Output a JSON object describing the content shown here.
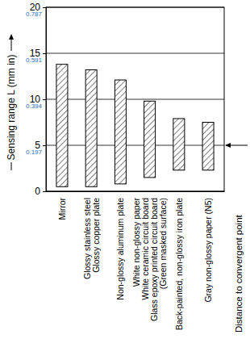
{
  "chart_data": {
    "type": "floating_bar",
    "y_label": "Sensing range L (mm in)",
    "categories": [
      "Mirror",
      "Glossy stainless steel\nGlossy copper plate",
      "Non-glossy aluminum plate",
      "White non-glossy paper\nWhite ceramic circuit board\nGlass epoxy printed circuit board\n(Green masked surface)",
      "Back-painted, non-glossy iron plate",
      "Gray non-glossy paper (N5)"
    ],
    "values": [
      [
        0.5,
        13.8
      ],
      [
        0.5,
        13.2
      ],
      [
        0.8,
        12.1
      ],
      [
        1.5,
        9.8
      ],
      [
        2.3,
        7.9
      ],
      [
        2.3,
        7.5
      ]
    ],
    "color": "#000000",
    "ylim": [
      0,
      20
    ],
    "yticks": [
      0,
      5,
      10,
      15,
      20
    ],
    "y2lim": [
      0,
      0.787
    ],
    "y2ticks": [
      0.197,
      0.394,
      0.591,
      0.787
    ],
    "grid": true,
    "annotations": [
      {
        "text": "Distance to convergent point",
        "y": 5
      }
    ]
  }
}
